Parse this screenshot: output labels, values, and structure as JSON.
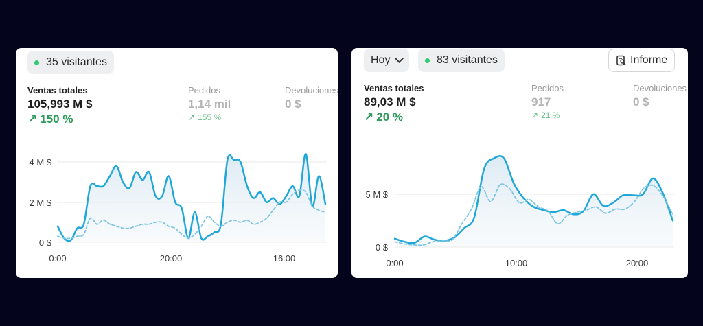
{
  "colors": {
    "accent": "#1ea7d8",
    "positive": "#2f9a5c",
    "live_dot": "#2ecc71"
  },
  "left": {
    "visitors": "35 visitantes",
    "metrics": [
      {
        "label": "Ventas totales",
        "value": "105,993 M $",
        "change": "150 %"
      },
      {
        "label": "Pedidos",
        "value": "1,14 mil",
        "change": "155 %"
      },
      {
        "label": "Devoluciones",
        "value": "0 $"
      }
    ],
    "y_ticks": [
      "4 M $",
      "2 M $",
      "0 $"
    ],
    "x_ticks": [
      "0:00",
      "20:00",
      "16:00"
    ]
  },
  "right": {
    "period": "Hoy",
    "visitors": "83 visitantes",
    "report_label": "Informe",
    "metrics": [
      {
        "label": "Ventas totales",
        "value": "89,03 M $",
        "change": "20 %"
      },
      {
        "label": "Pedidos",
        "value": "917",
        "change": "21 %"
      },
      {
        "label": "Devoluciones",
        "value": "0 $"
      }
    ],
    "y_ticks": [
      "5 M $",
      "0 $"
    ],
    "x_ticks": [
      "0:00",
      "10:00",
      "20:00"
    ]
  },
  "chart_data": [
    {
      "type": "line",
      "ylim": [
        0,
        4
      ],
      "series": [
        {
          "style": "solid",
          "values": [
            0.8,
            0.2,
            0.1,
            0.7,
            0.9,
            2.8,
            2.8,
            2.8,
            3.3,
            3.8,
            3.0,
            2.7,
            3.5,
            3.1,
            3.5,
            2.3,
            2.3,
            3.3,
            2.0,
            1.7,
            0.2,
            1.5,
            0.2,
            0.3,
            0.5,
            0.9,
            4.1,
            4.1,
            4.0,
            2.8,
            2.2,
            2.5,
            2.0,
            2.2,
            1.9,
            2.3,
            2.8,
            2.3,
            4.4,
            1.8,
            3.3,
            1.9
          ]
        },
        {
          "style": "dashed",
          "values": [
            0.3,
            0.2,
            0.2,
            0.3,
            0.4,
            1.2,
            0.9,
            1.1,
            0.9,
            0.8,
            0.7,
            0.7,
            0.8,
            0.9,
            0.9,
            1.0,
            1.0,
            0.8,
            0.7,
            0.4,
            0.2,
            0.4,
            0.8,
            1.3,
            1.0,
            0.8,
            1.0,
            1.1,
            1.0,
            1.1,
            0.9,
            1.0,
            1.2,
            1.6,
            2.0,
            2.0,
            2.4,
            2.6,
            2.5,
            1.8,
            1.6,
            1.5
          ]
        }
      ]
    },
    {
      "type": "line",
      "ylim": [
        0,
        10
      ],
      "series": [
        {
          "style": "solid",
          "values": [
            0.8,
            0.5,
            0.4,
            1.0,
            0.7,
            0.6,
            0.9,
            1.8,
            2.8,
            7.4,
            8.4,
            8.4,
            6.0,
            4.6,
            3.8,
            3.5,
            3.3,
            3.5,
            3.1,
            3.4,
            5.0,
            3.9,
            4.2,
            4.9,
            4.9,
            5.0,
            6.5,
            5.1,
            2.5
          ]
        },
        {
          "style": "dashed",
          "values": [
            0.5,
            0.3,
            0.2,
            0.2,
            0.5,
            0.6,
            0.7,
            2.2,
            3.6,
            5.7,
            4.3,
            5.9,
            5.5,
            4.2,
            4.5,
            3.8,
            3.4,
            2.2,
            3.0,
            3.3,
            3.5,
            3.8,
            3.2,
            3.6,
            3.6,
            4.3,
            5.6,
            5.8,
            4.8,
            3.1
          ]
        }
      ]
    }
  ]
}
